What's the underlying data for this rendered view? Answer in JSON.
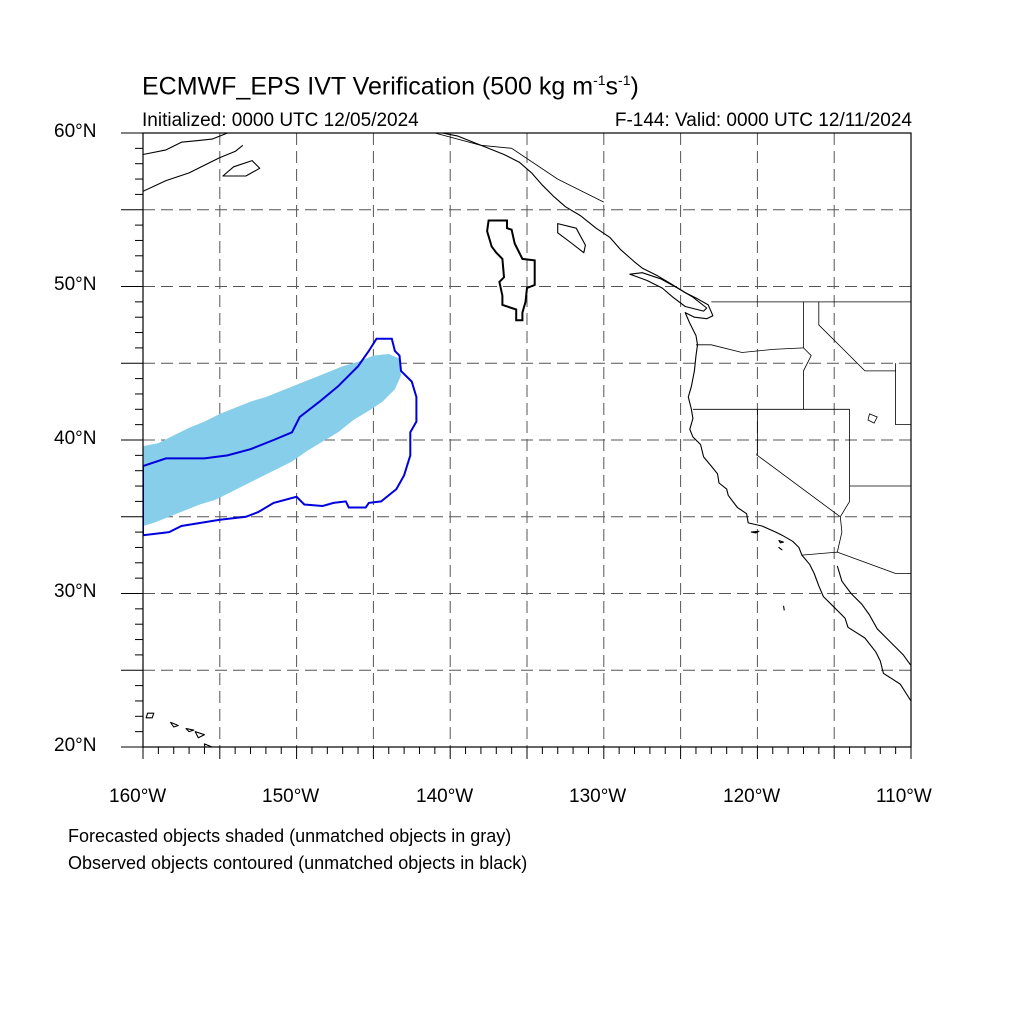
{
  "title": {
    "text": "ECMWF_EPS IVT Verification (500 kg m",
    "sup1": "-1",
    "mid": "s",
    "sup2": "-1",
    "end": ")"
  },
  "initialized": "Initialized: 0000 UTC 12/05/2024",
  "valid": "F-144: Valid: 0000 UTC 12/11/2024",
  "lat_labels": [
    "60°N",
    "50°N",
    "40°N",
    "30°N",
    "20°N"
  ],
  "lon_labels": [
    "160°W",
    "150°W",
    "140°W",
    "130°W",
    "120°W",
    "110°W"
  ],
  "notes": [
    "Forecasted objects shaded (unmatched objects in gray)",
    "Observed objects contoured (unmatched objects in black)"
  ],
  "map": {
    "lon_range": [
      -160,
      -110
    ],
    "lat_range": [
      20,
      60
    ],
    "grid_lons": [
      -155,
      -150,
      -145,
      -140,
      -135,
      -130,
      -125,
      -120,
      -115
    ],
    "grid_lats": [
      25,
      30,
      35,
      40,
      45,
      50,
      55
    ],
    "colors": {
      "forecast_matched": "#87ceeb",
      "observed_matched": "#0000dd",
      "observed_unmatched": "#000000",
      "grid": "#555555"
    }
  },
  "objects": {
    "forecast_matched": [
      [
        -160,
        39.6
      ],
      [
        -159,
        39.8
      ],
      [
        -158,
        40.3
      ],
      [
        -157,
        40.8
      ],
      [
        -156,
        41.2
      ],
      [
        -155,
        41.7
      ],
      [
        -154,
        42.1
      ],
      [
        -153,
        42.5
      ],
      [
        -152,
        42.8
      ],
      [
        -151,
        43.2
      ],
      [
        -150,
        43.6
      ],
      [
        -149,
        44
      ],
      [
        -148,
        44.4
      ],
      [
        -147,
        44.8
      ],
      [
        -146,
        45.1
      ],
      [
        -145,
        45.5
      ],
      [
        -144,
        45.6
      ],
      [
        -143.3,
        45.3
      ],
      [
        -143.2,
        44.2
      ],
      [
        -143.6,
        43.3
      ],
      [
        -144.4,
        42.5
      ],
      [
        -145.3,
        41.9
      ],
      [
        -146.3,
        41.3
      ],
      [
        -147.3,
        40.5
      ],
      [
        -148.3,
        39.9
      ],
      [
        -149.3,
        39.3
      ],
      [
        -150.3,
        38.6
      ],
      [
        -151.3,
        38.1
      ],
      [
        -152.3,
        37.6
      ],
      [
        -153.3,
        37.1
      ],
      [
        -154.3,
        36.6
      ],
      [
        -155.3,
        36.1
      ],
      [
        -156.3,
        35.8
      ],
      [
        -157.3,
        35.4
      ],
      [
        -158.3,
        35
      ],
      [
        -159.3,
        34.6
      ],
      [
        -160,
        34.4
      ]
    ],
    "observed_matched": [
      [
        -160,
        38.3
      ],
      [
        -158.5,
        38.8
      ],
      [
        -156,
        38.8
      ],
      [
        -154.5,
        39
      ],
      [
        -153,
        39.4
      ],
      [
        -151.5,
        40
      ],
      [
        -150.3,
        40.5
      ],
      [
        -149.8,
        41.5
      ],
      [
        -148.5,
        42.5
      ],
      [
        -147.3,
        43.5
      ],
      [
        -146,
        44.8
      ],
      [
        -145.3,
        45.8
      ],
      [
        -144.8,
        46.6
      ],
      [
        -143.8,
        46.6
      ],
      [
        -143.6,
        45.8
      ],
      [
        -143.3,
        45.5
      ],
      [
        -143.2,
        44.5
      ],
      [
        -142.5,
        43.8
      ],
      [
        -142.2,
        42.8
      ],
      [
        -142.2,
        41.2
      ],
      [
        -142.6,
        40.5
      ],
      [
        -142.6,
        39
      ],
      [
        -143,
        37.7
      ],
      [
        -143.5,
        36.8
      ],
      [
        -144.5,
        36
      ],
      [
        -145.3,
        35.9
      ],
      [
        -145.5,
        35.6
      ],
      [
        -146.6,
        35.6
      ],
      [
        -146.8,
        36
      ],
      [
        -147.6,
        35.9
      ],
      [
        -148.3,
        35.7
      ],
      [
        -149.5,
        35.8
      ],
      [
        -150,
        36.3
      ],
      [
        -151.5,
        35.9
      ],
      [
        -152.5,
        35.3
      ],
      [
        -153.3,
        35
      ],
      [
        -155,
        34.8
      ],
      [
        -157.5,
        34.4
      ],
      [
        -158.3,
        34
      ],
      [
        -160,
        33.8
      ]
    ],
    "observed_unmatched": [
      [
        -137.5,
        54.3
      ],
      [
        -136.3,
        54.3
      ],
      [
        -136.3,
        53.8
      ],
      [
        -136,
        53.7
      ],
      [
        -135.8,
        52.8
      ],
      [
        -135.3,
        51.8
      ],
      [
        -134.5,
        51.7
      ],
      [
        -134.5,
        50.1
      ],
      [
        -135,
        49.9
      ],
      [
        -135.1,
        49
      ],
      [
        -135.3,
        48.3
      ],
      [
        -135.3,
        47.8
      ],
      [
        -135.7,
        47.8
      ],
      [
        -135.7,
        48.5
      ],
      [
        -136.6,
        48.8
      ],
      [
        -136.6,
        49.4
      ],
      [
        -136.8,
        50.3
      ],
      [
        -136.5,
        50.6
      ],
      [
        -136.6,
        51.8
      ],
      [
        -137,
        52.2
      ],
      [
        -137.3,
        52.6
      ],
      [
        -137.6,
        53.6
      ]
    ]
  },
  "coast": {
    "na": [
      [
        -141,
        60.1
      ],
      [
        -139.5,
        59.8
      ],
      [
        -138,
        59.2
      ],
      [
        -136.5,
        58.6
      ],
      [
        -135.5,
        58.1
      ],
      [
        -134.7,
        57.4
      ],
      [
        -134,
        56.6
      ],
      [
        -133.3,
        55.9
      ],
      [
        -132.5,
        55.2
      ],
      [
        -131.5,
        54.6
      ],
      [
        -130.5,
        53.8
      ],
      [
        -129.6,
        53.2
      ],
      [
        -128.9,
        52.4
      ],
      [
        -128,
        51.6
      ],
      [
        -127.5,
        51.2
      ],
      [
        -126.5,
        50.7
      ],
      [
        -125.5,
        50.1
      ],
      [
        -124.7,
        49.6
      ],
      [
        -123.9,
        49.2
      ],
      [
        -123.2,
        48.8
      ],
      [
        -122.9,
        48.1
      ],
      [
        -123.3,
        47.9
      ],
      [
        -124.1,
        48
      ],
      [
        -124.7,
        48.3
      ],
      [
        -124.4,
        47.6
      ],
      [
        -124,
        46.8
      ],
      [
        -123.9,
        46.2
      ],
      [
        -124,
        45.5
      ],
      [
        -124.1,
        44.5
      ],
      [
        -124.3,
        43.5
      ],
      [
        -124.5,
        42.8
      ],
      [
        -124.3,
        42
      ],
      [
        -124.2,
        41.4
      ],
      [
        -124.4,
        40.7
      ],
      [
        -124.2,
        40.2
      ],
      [
        -123.7,
        39.7
      ],
      [
        -123.5,
        38.9
      ],
      [
        -123,
        38.3
      ],
      [
        -122.6,
        37.8
      ],
      [
        -122.5,
        37.2
      ],
      [
        -122,
        36.8
      ],
      [
        -121.9,
        36.4
      ],
      [
        -121.3,
        35.6
      ],
      [
        -120.7,
        35.2
      ],
      [
        -120.6,
        34.6
      ],
      [
        -119.7,
        34.4
      ],
      [
        -118.8,
        34
      ],
      [
        -118.4,
        33.8
      ],
      [
        -117.7,
        33.4
      ],
      [
        -117.3,
        33
      ],
      [
        -117.1,
        32.5
      ],
      [
        -116.6,
        31.9
      ],
      [
        -116.3,
        31.3
      ],
      [
        -116,
        30.5
      ],
      [
        -115.7,
        29.8
      ],
      [
        -115,
        29.1
      ],
      [
        -114.3,
        28.4
      ],
      [
        -114.1,
        27.8
      ],
      [
        -113,
        27.1
      ],
      [
        -112.3,
        26.2
      ],
      [
        -112,
        25.6
      ],
      [
        -111.8,
        24.8
      ],
      [
        -110.7,
        24.1
      ],
      [
        -110,
        23
      ]
    ],
    "gulf": [
      [
        -114.8,
        31.8
      ],
      [
        -114.5,
        30.8
      ],
      [
        -113.9,
        30
      ],
      [
        -113.2,
        29.3
      ],
      [
        -112.7,
        28.6
      ],
      [
        -112.2,
        27.7
      ],
      [
        -111.3,
        26.8
      ],
      [
        -110.5,
        26
      ],
      [
        -110,
        25.3
      ]
    ],
    "vi": [
      [
        -128.3,
        50.8
      ],
      [
        -127.2,
        50.4
      ],
      [
        -126.2,
        49.9
      ],
      [
        -125.5,
        49.3
      ],
      [
        -124.7,
        48.7
      ],
      [
        -123.5,
        48.4
      ],
      [
        -123.3,
        48.6
      ],
      [
        -124.2,
        49.3
      ],
      [
        -125.2,
        49.9
      ],
      [
        -126.3,
        50.5
      ],
      [
        -127.5,
        50.9
      ]
    ],
    "hg": [
      [
        -133,
        54.1
      ],
      [
        -131.8,
        53.8
      ],
      [
        -131.2,
        52.7
      ],
      [
        -131.3,
        52.2
      ],
      [
        -132.2,
        52.9
      ],
      [
        -133,
        53.5
      ]
    ],
    "alaska_sw": [
      [
        -160,
        58.6
      ],
      [
        -158.5,
        58.9
      ],
      [
        -157.5,
        59.4
      ],
      [
        -156.5,
        59.5
      ],
      [
        -155.5,
        59.6
      ],
      [
        -154.5,
        60
      ]
    ],
    "alaska_pen": [
      [
        -160,
        56.2
      ],
      [
        -158.5,
        56.9
      ],
      [
        -157,
        57.4
      ],
      [
        -156,
        57.9
      ],
      [
        -155,
        58.4
      ],
      [
        -154,
        58.8
      ],
      [
        -153.5,
        59.2
      ]
    ],
    "kodiak": [
      [
        -154.8,
        57.2
      ],
      [
        -153.3,
        57.2
      ],
      [
        -152.4,
        57.7
      ],
      [
        -152.9,
        58.2
      ],
      [
        -154.1,
        57.8
      ]
    ],
    "hawaii": [
      [
        [
          -159.7,
          22.2
        ],
        [
          -159.3,
          22.2
        ],
        [
          -159.4,
          21.9
        ],
        [
          -159.8,
          21.9
        ]
      ],
      [
        [
          -158.2,
          21.6
        ],
        [
          -157.7,
          21.4
        ],
        [
          -158,
          21.3
        ]
      ],
      [
        [
          -157.2,
          21.2
        ],
        [
          -156.7,
          21.1
        ],
        [
          -157,
          21
        ]
      ],
      [
        [
          -156.6,
          21
        ],
        [
          -156,
          20.8
        ],
        [
          -156.4,
          20.6
        ]
      ],
      [
        [
          -156,
          20.2
        ],
        [
          -155,
          19.8
        ],
        [
          -155.5,
          19.3
        ],
        [
          -155.9,
          19.5
        ]
      ]
    ],
    "channel_isl": [
      [
        [
          -120.4,
          34
        ],
        [
          -119.9,
          34.05
        ],
        [
          -120.1,
          33.95
        ]
      ],
      [
        [
          -118.6,
          33.45
        ],
        [
          -118.3,
          33.35
        ],
        [
          -118.5,
          33.3
        ]
      ],
      [
        [
          -118.6,
          33
        ],
        [
          -118.4,
          32.85
        ]
      ]
    ],
    "guadalupe": [
      [
        -118.3,
        29.2
      ],
      [
        -118.25,
        28.9
      ]
    ]
  },
  "borders": {
    "us_can": [
      [
        -123,
        49
      ],
      [
        -110,
        49
      ]
    ],
    "wa_or": [
      [
        -124,
        46.2
      ],
      [
        -123,
        46.2
      ],
      [
        -121,
        45.7
      ],
      [
        -119,
        45.9
      ],
      [
        -117,
        46
      ]
    ],
    "wa_id": [
      [
        -117,
        49
      ],
      [
        -117,
        46
      ]
    ],
    "or_id": [
      [
        -117,
        46
      ],
      [
        -116.5,
        45.5
      ],
      [
        -117,
        44.5
      ],
      [
        -117,
        42
      ]
    ],
    "or_ca_nv": [
      [
        -124.2,
        42
      ],
      [
        -114,
        42
      ]
    ],
    "ca_nv": [
      [
        -120,
        42
      ],
      [
        -120,
        39
      ],
      [
        -114.6,
        35
      ]
    ],
    "nv_ut": [
      [
        -114,
        42
      ],
      [
        -114,
        37
      ]
    ],
    "nv_az": [
      [
        -114,
        37
      ],
      [
        -114,
        36
      ],
      [
        -114.6,
        35
      ]
    ],
    "az_ca": [
      [
        -114.6,
        35
      ],
      [
        -114.5,
        34
      ],
      [
        -114.8,
        32.7
      ]
    ],
    "us_mex": [
      [
        -117.1,
        32.5
      ],
      [
        -114.8,
        32.7
      ],
      [
        -111,
        31.3
      ],
      [
        -108,
        31.3
      ]
    ],
    "id_mt": [
      [
        -116,
        49
      ],
      [
        -116,
        47.5
      ],
      [
        -114.5,
        46
      ],
      [
        -113,
        44.5
      ],
      [
        -111,
        44.5
      ]
    ],
    "wy": [
      [
        -111,
        45
      ],
      [
        -111,
        41
      ],
      [
        -110,
        41
      ]
    ],
    "ut_az": [
      [
        -114,
        37
      ],
      [
        -110,
        37
      ]
    ],
    "bc_ak": [
      [
        -141,
        60
      ],
      [
        -138,
        59.2
      ],
      [
        -136,
        59
      ],
      [
        -133,
        57
      ],
      [
        -130,
        55.5
      ]
    ],
    "lake_tahoe": [
      [
        -120,
        39.2
      ],
      [
        -120.05,
        39
      ]
    ],
    "gsl": [
      [
        [
          -112.7,
          41.7
        ],
        [
          -112.2,
          41.5
        ],
        [
          -112.4,
          41.1
        ],
        [
          -112.8,
          41.3
        ]
      ]
    ]
  }
}
